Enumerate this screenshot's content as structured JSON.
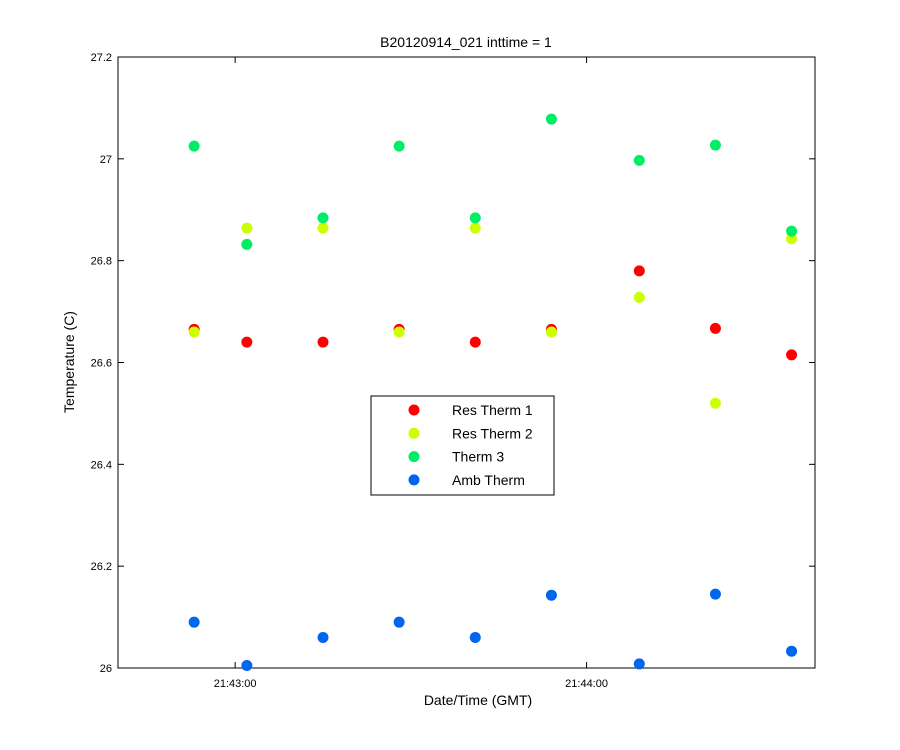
{
  "chart_data": {
    "type": "scatter",
    "title": "B20120914_021 inttime = 1",
    "xlabel": "Date/Time (GMT)",
    "ylabel": "Temperature (C)",
    "xlim": [
      "21:42:40",
      "21:44:39"
    ],
    "ylim": [
      26.0,
      27.2
    ],
    "x_ticks": [
      "21:43:00",
      "21:44:00"
    ],
    "y_ticks": [
      26,
      26.2,
      26.4,
      26.6,
      26.8,
      27,
      27.2
    ],
    "y_tick_labels": [
      "26",
      "26.2",
      "26.4",
      "26.6",
      "26.8",
      "27",
      "27.2"
    ],
    "grid": false,
    "legend_position": "center",
    "x": [
      "21:42:53",
      "21:43:02",
      "21:43:15",
      "21:43:28",
      "21:43:41",
      "21:43:54",
      "21:44:09",
      "21:44:22",
      "21:44:35"
    ],
    "series": [
      {
        "name": "Res Therm 1",
        "color": "#ff0000",
        "values": [
          26.665,
          26.64,
          26.64,
          26.665,
          26.64,
          26.665,
          26.78,
          26.667,
          26.615
        ]
      },
      {
        "name": "Res Therm 2",
        "color": "#ccff00",
        "values": [
          26.66,
          26.864,
          26.864,
          26.66,
          26.864,
          26.66,
          26.728,
          26.52,
          26.843
        ]
      },
      {
        "name": "Therm 3",
        "color": "#00ee66",
        "values": [
          27.025,
          26.832,
          26.884,
          27.025,
          26.884,
          27.078,
          26.997,
          27.027,
          26.858
        ]
      },
      {
        "name": "Amb Therm",
        "color": "#0066ee",
        "values": [
          26.09,
          26.005,
          26.06,
          26.09,
          26.06,
          26.143,
          26.008,
          26.145,
          26.033
        ]
      }
    ]
  }
}
